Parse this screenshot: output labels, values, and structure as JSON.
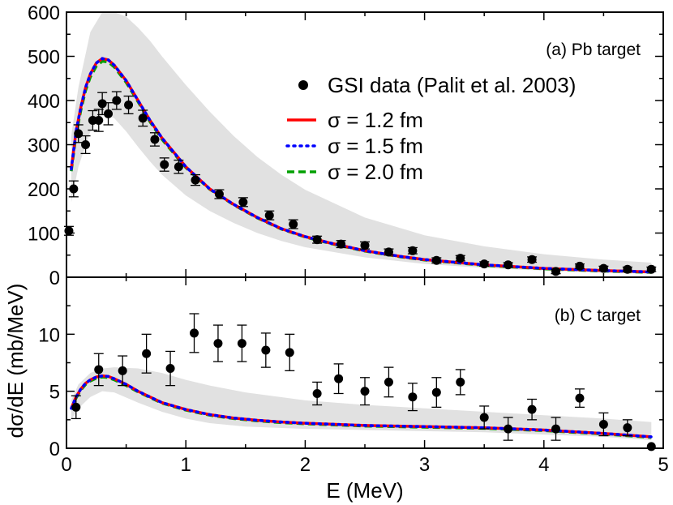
{
  "chart_data": [
    {
      "type": "scatter",
      "panel_label": "(a) Pb target",
      "xlabel": "E (MeV)",
      "ylabel": "dσ/dE (mb/MeV)",
      "xlim": [
        0,
        5
      ],
      "ylim": [
        0,
        600
      ],
      "x_ticks": [
        0,
        1,
        2,
        3,
        4,
        5
      ],
      "y_ticks": [
        0,
        100,
        200,
        300,
        400,
        500,
        600
      ],
      "legend": {
        "position": "top-right"
      },
      "data_series": {
        "name": "GSI data (Palit et al. 2003)",
        "points": [
          {
            "x": 0.02,
            "y": 105,
            "err": 10
          },
          {
            "x": 0.06,
            "y": 200,
            "err": 18
          },
          {
            "x": 0.1,
            "y": 325,
            "err": 20
          },
          {
            "x": 0.16,
            "y": 300,
            "err": 20
          },
          {
            "x": 0.22,
            "y": 355,
            "err": 22
          },
          {
            "x": 0.27,
            "y": 355,
            "err": 25
          },
          {
            "x": 0.3,
            "y": 393,
            "err": 25
          },
          {
            "x": 0.35,
            "y": 370,
            "err": 25
          },
          {
            "x": 0.42,
            "y": 400,
            "err": 20
          },
          {
            "x": 0.52,
            "y": 390,
            "err": 20
          },
          {
            "x": 0.64,
            "y": 360,
            "err": 18
          },
          {
            "x": 0.74,
            "y": 312,
            "err": 15
          },
          {
            "x": 0.82,
            "y": 255,
            "err": 15
          },
          {
            "x": 0.94,
            "y": 250,
            "err": 15
          },
          {
            "x": 1.08,
            "y": 220,
            "err": 12
          },
          {
            "x": 1.28,
            "y": 188,
            "err": 10
          },
          {
            "x": 1.48,
            "y": 170,
            "err": 10
          },
          {
            "x": 1.7,
            "y": 140,
            "err": 10
          },
          {
            "x": 1.9,
            "y": 120,
            "err": 10
          },
          {
            "x": 2.1,
            "y": 85,
            "err": 8
          },
          {
            "x": 2.3,
            "y": 75,
            "err": 8
          },
          {
            "x": 2.5,
            "y": 72,
            "err": 8
          },
          {
            "x": 2.7,
            "y": 57,
            "err": 7
          },
          {
            "x": 2.9,
            "y": 60,
            "err": 7
          },
          {
            "x": 3.1,
            "y": 38,
            "err": 6
          },
          {
            "x": 3.3,
            "y": 43,
            "err": 6
          },
          {
            "x": 3.5,
            "y": 30,
            "err": 5
          },
          {
            "x": 3.7,
            "y": 28,
            "err": 5
          },
          {
            "x": 3.9,
            "y": 40,
            "err": 6
          },
          {
            "x": 4.1,
            "y": 13,
            "err": 5
          },
          {
            "x": 4.3,
            "y": 25,
            "err": 5
          },
          {
            "x": 4.5,
            "y": 20,
            "err": 5
          },
          {
            "x": 4.7,
            "y": 18,
            "err": 5
          },
          {
            "x": 4.9,
            "y": 18,
            "err": 5
          }
        ]
      },
      "curve_x": [
        0.04,
        0.08,
        0.12,
        0.16,
        0.2,
        0.25,
        0.3,
        0.35,
        0.4,
        0.5,
        0.6,
        0.7,
        0.8,
        1.0,
        1.2,
        1.4,
        1.6,
        1.8,
        2.0,
        2.2,
        2.5,
        2.8,
        3.0,
        3.5,
        4.0,
        4.5,
        4.9
      ],
      "theory_series": [
        {
          "name": "σ = 1.2 fm",
          "color": "#ff0000",
          "dash": "solid",
          "values": [
            245,
            330,
            385,
            430,
            460,
            485,
            495,
            492,
            480,
            445,
            400,
            355,
            315,
            250,
            200,
            165,
            135,
            110,
            92,
            78,
            60,
            47,
            40,
            28,
            20,
            15,
            12
          ]
        },
        {
          "name": "σ = 1.5 fm",
          "color": "#0000ff",
          "dash": "dotted",
          "values": [
            245,
            330,
            385,
            430,
            460,
            485,
            495,
            492,
            480,
            445,
            400,
            355,
            315,
            250,
            200,
            165,
            135,
            110,
            92,
            78,
            60,
            47,
            40,
            28,
            20,
            15,
            12
          ]
        },
        {
          "name": "σ = 2.0 fm",
          "color": "#00a000",
          "dash": "dashed",
          "values": [
            240,
            322,
            378,
            423,
            453,
            478,
            489,
            487,
            476,
            441,
            397,
            352,
            312,
            248,
            199,
            164,
            134,
            109,
            91,
            77,
            59,
            46,
            39,
            27,
            19,
            14,
            11
          ]
        }
      ],
      "band": {
        "x": [
          0.04,
          0.1,
          0.2,
          0.3,
          0.4,
          0.5,
          0.6,
          0.7,
          0.8,
          1.0,
          1.2,
          1.4,
          1.6,
          1.8,
          2.0,
          2.5,
          3.0,
          3.5,
          4.0,
          4.5,
          4.9
        ],
        "lower": [
          170,
          250,
          330,
          370,
          360,
          330,
          295,
          262,
          232,
          185,
          150,
          123,
          100,
          82,
          68,
          45,
          30,
          21,
          15,
          10,
          8
        ],
        "upper": [
          320,
          430,
          555,
          600,
          600,
          590,
          565,
          535,
          500,
          435,
          375,
          320,
          272,
          232,
          198,
          135,
          95,
          70,
          52,
          40,
          33
        ]
      }
    },
    {
      "type": "scatter",
      "panel_label": "(b) C target",
      "xlim": [
        0,
        5
      ],
      "ylim": [
        0,
        15
      ],
      "x_ticks": [
        0,
        1,
        2,
        3,
        4,
        5
      ],
      "x_tick_labels": [
        "0",
        "1",
        "2",
        "3",
        "4",
        "5"
      ],
      "y_ticks": [
        0,
        5,
        10
      ],
      "data_series": {
        "points": [
          {
            "x": 0.08,
            "y": 3.6,
            "err": 1.0
          },
          {
            "x": 0.27,
            "y": 6.9,
            "err": 1.4
          },
          {
            "x": 0.47,
            "y": 6.8,
            "err": 1.3
          },
          {
            "x": 0.67,
            "y": 8.3,
            "err": 1.7
          },
          {
            "x": 0.87,
            "y": 7.0,
            "err": 1.5
          },
          {
            "x": 1.07,
            "y": 10.1,
            "err": 1.7
          },
          {
            "x": 1.27,
            "y": 9.2,
            "err": 1.6
          },
          {
            "x": 1.47,
            "y": 9.2,
            "err": 1.6
          },
          {
            "x": 1.67,
            "y": 8.6,
            "err": 1.5
          },
          {
            "x": 1.87,
            "y": 8.4,
            "err": 1.6
          },
          {
            "x": 2.1,
            "y": 4.8,
            "err": 1.0
          },
          {
            "x": 2.28,
            "y": 6.1,
            "err": 1.3
          },
          {
            "x": 2.5,
            "y": 5.0,
            "err": 1.2
          },
          {
            "x": 2.7,
            "y": 5.8,
            "err": 1.3
          },
          {
            "x": 2.9,
            "y": 4.5,
            "err": 1.2
          },
          {
            "x": 3.1,
            "y": 4.9,
            "err": 1.3
          },
          {
            "x": 3.3,
            "y": 5.8,
            "err": 1.1
          },
          {
            "x": 3.5,
            "y": 2.7,
            "err": 1.0
          },
          {
            "x": 3.7,
            "y": 1.7,
            "err": 1.0
          },
          {
            "x": 3.9,
            "y": 3.4,
            "err": 0.9
          },
          {
            "x": 4.1,
            "y": 1.7,
            "err": 1.0
          },
          {
            "x": 4.3,
            "y": 4.4,
            "err": 0.8
          },
          {
            "x": 4.5,
            "y": 2.1,
            "err": 1.0
          },
          {
            "x": 4.7,
            "y": 1.8,
            "err": 0.7
          },
          {
            "x": 4.9,
            "y": 0.15,
            "err": 0
          }
        ]
      },
      "curve_x": [
        0.04,
        0.08,
        0.12,
        0.16,
        0.2,
        0.25,
        0.3,
        0.35,
        0.4,
        0.5,
        0.6,
        0.7,
        0.8,
        1.0,
        1.2,
        1.4,
        1.6,
        1.8,
        2.0,
        2.5,
        3.0,
        3.5,
        4.0,
        4.5,
        4.9
      ],
      "theory_series": [
        {
          "color": "#ff0000",
          "dash": "solid",
          "values": [
            3.5,
            4.5,
            5.2,
            5.7,
            6.0,
            6.25,
            6.35,
            6.3,
            6.1,
            5.6,
            5.0,
            4.5,
            4.0,
            3.4,
            2.95,
            2.65,
            2.45,
            2.3,
            2.2,
            2.0,
            1.9,
            1.8,
            1.6,
            1.3,
            1.0
          ]
        },
        {
          "color": "#0000ff",
          "dash": "dotted",
          "values": [
            3.5,
            4.5,
            5.2,
            5.7,
            6.0,
            6.25,
            6.35,
            6.3,
            6.1,
            5.6,
            5.0,
            4.5,
            4.0,
            3.4,
            2.95,
            2.65,
            2.45,
            2.3,
            2.2,
            2.0,
            1.9,
            1.8,
            1.6,
            1.3,
            1.0
          ]
        },
        {
          "color": "#00a000",
          "dash": "dashed",
          "values": [
            3.4,
            4.4,
            5.1,
            5.6,
            5.9,
            6.15,
            6.25,
            6.2,
            6.0,
            5.5,
            4.95,
            4.45,
            3.95,
            3.35,
            2.9,
            2.6,
            2.4,
            2.25,
            2.15,
            1.95,
            1.85,
            1.75,
            1.55,
            1.25,
            0.95
          ]
        }
      ],
      "band": {
        "x": [
          0.04,
          0.1,
          0.2,
          0.3,
          0.4,
          0.6,
          0.8,
          1.0,
          1.2,
          1.5,
          2.0,
          2.5,
          3.0,
          3.5,
          4.0,
          4.5,
          4.9
        ],
        "lower": [
          2.5,
          3.5,
          4.5,
          5.0,
          4.9,
          4.0,
          3.2,
          2.6,
          2.2,
          1.9,
          1.7,
          1.6,
          1.5,
          1.4,
          1.2,
          1.0,
          0.7
        ],
        "upper": [
          4.2,
          5.6,
          6.6,
          7.0,
          7.1,
          7.0,
          6.6,
          6.0,
          5.5,
          4.9,
          4.2,
          3.8,
          3.5,
          3.2,
          2.9,
          2.6,
          2.3
        ]
      }
    }
  ]
}
